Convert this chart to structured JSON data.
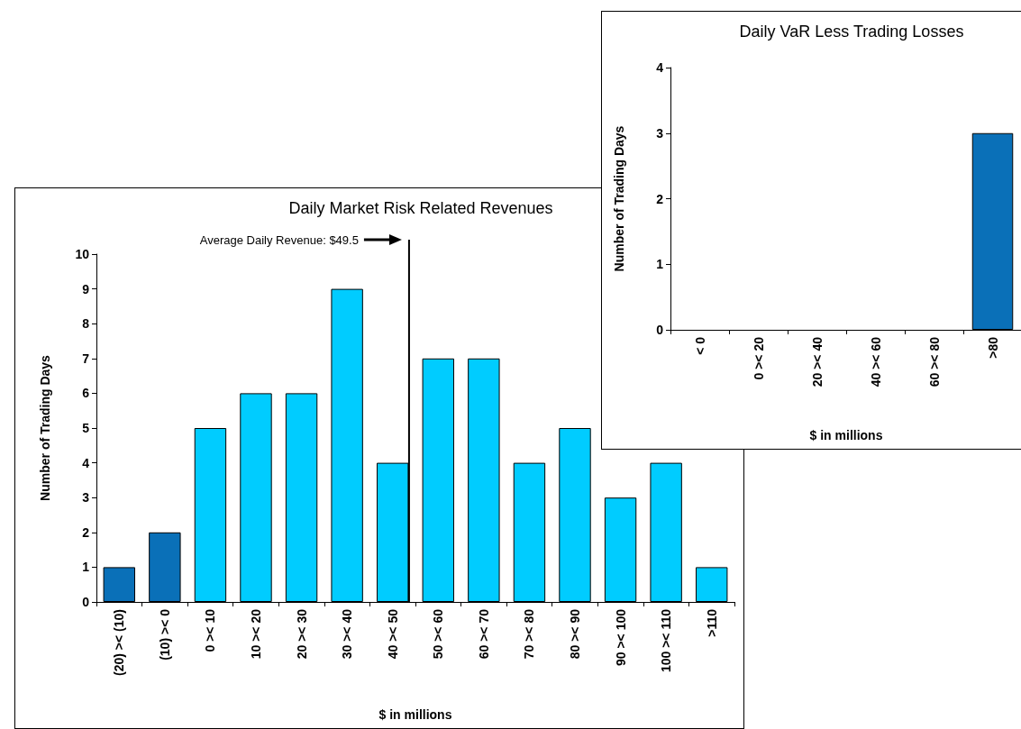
{
  "chart_data": [
    {
      "type": "bar",
      "title": "Daily Market Risk Related Revenues",
      "xlabel": "$ in millions",
      "ylabel": "Number of Trading Days",
      "categories": [
        "(20) >< (10)",
        "(10) >< 0",
        "0 >< 10",
        "10 >< 20",
        "20 >< 30",
        "30 >< 40",
        "40 >< 50",
        "50 >< 60",
        "60 >< 70",
        "70 >< 80",
        "80 >< 90",
        "90 >< 100",
        "100 >< 110",
        ">110"
      ],
      "values": [
        1,
        2,
        5,
        6,
        6,
        9,
        4,
        7,
        7,
        4,
        5,
        3,
        4,
        1
      ],
      "colors": [
        "#0a70b8",
        "#0a70b8",
        "#00ccff",
        "#00ccff",
        "#00ccff",
        "#00ccff",
        "#00ccff",
        "#00ccff",
        "#00ccff",
        "#00ccff",
        "#00ccff",
        "#00ccff",
        "#00ccff",
        "#00ccff"
      ],
      "ylim": [
        0,
        10
      ],
      "yticks": [
        0,
        1,
        2,
        3,
        4,
        5,
        6,
        7,
        8,
        9,
        10
      ],
      "grid": false,
      "ref_lines": [
        {
          "axis": "x",
          "value": "40 >< 50",
          "label": "Average Daily Revenue: $49.5",
          "color": "#000000"
        }
      ]
    },
    {
      "type": "bar",
      "title": "Daily VaR Less Trading Losses",
      "xlabel": "$ in millions",
      "ylabel": "Number of Trading Days",
      "categories": [
        "< 0",
        "0 >< 20",
        "20 >< 40",
        "40 >< 60",
        "60 >< 80",
        ">80"
      ],
      "values": [
        0,
        0,
        0,
        0,
        0,
        3
      ],
      "color": "#0a70b8",
      "ylim": [
        0,
        4
      ],
      "yticks": [
        0,
        1,
        2,
        3,
        4
      ],
      "grid": false
    }
  ]
}
